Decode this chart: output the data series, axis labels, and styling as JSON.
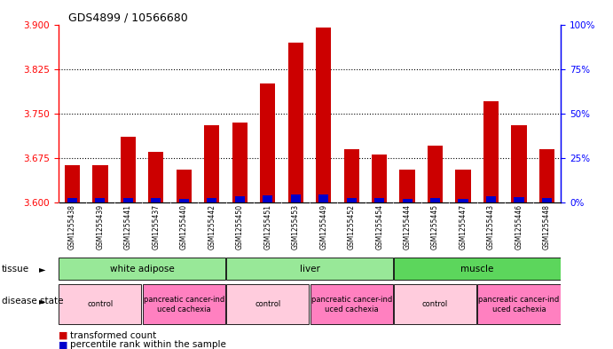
{
  "title": "GDS4899 / 10566680",
  "samples": [
    "GSM1255438",
    "GSM1255439",
    "GSM1255441",
    "GSM1255437",
    "GSM1255440",
    "GSM1255442",
    "GSM1255450",
    "GSM1255451",
    "GSM1255453",
    "GSM1255449",
    "GSM1255452",
    "GSM1255454",
    "GSM1255444",
    "GSM1255445",
    "GSM1255447",
    "GSM1255443",
    "GSM1255446",
    "GSM1255448"
  ],
  "red_values": [
    3.663,
    3.663,
    3.71,
    3.685,
    3.655,
    3.73,
    3.735,
    3.8,
    3.87,
    3.895,
    3.69,
    3.68,
    3.655,
    3.695,
    3.655,
    3.77,
    3.73,
    3.69
  ],
  "blue_values": [
    3.607,
    3.607,
    3.608,
    3.608,
    3.606,
    3.608,
    3.61,
    3.612,
    3.614,
    3.614,
    3.608,
    3.607,
    3.606,
    3.608,
    3.606,
    3.611,
    3.609,
    3.607
  ],
  "ylim_left": [
    3.6,
    3.9
  ],
  "ylim_right": [
    0,
    100
  ],
  "yticks_left": [
    3.6,
    3.675,
    3.75,
    3.825,
    3.9
  ],
  "yticks_right": [
    0,
    25,
    50,
    75,
    100
  ],
  "grid_values": [
    3.675,
    3.75,
    3.825
  ],
  "tissue_groups": [
    {
      "label": "white adipose",
      "start": 0,
      "end": 6,
      "color": "#98E898"
    },
    {
      "label": "liver",
      "start": 6,
      "end": 12,
      "color": "#98E898"
    },
    {
      "label": "muscle",
      "start": 12,
      "end": 18,
      "color": "#5CD65C"
    }
  ],
  "disease_groups": [
    {
      "label": "control",
      "start": 0,
      "end": 3,
      "color": "#FFCCDD"
    },
    {
      "label": "pancreatic cancer-ind\nuced cachexia",
      "start": 3,
      "end": 6,
      "color": "#FF80C0"
    },
    {
      "label": "control",
      "start": 6,
      "end": 9,
      "color": "#FFCCDD"
    },
    {
      "label": "pancreatic cancer-ind\nuced cachexia",
      "start": 9,
      "end": 12,
      "color": "#FF80C0"
    },
    {
      "label": "control",
      "start": 12,
      "end": 15,
      "color": "#FFCCDD"
    },
    {
      "label": "pancreatic cancer-ind\nuced cachexia",
      "start": 15,
      "end": 18,
      "color": "#FF80C0"
    }
  ],
  "bar_width": 0.55,
  "red_color": "#CC0000",
  "blue_color": "#0000CC",
  "base": 3.6,
  "bg_gray": "#C8C8C8",
  "legend_red_label": "transformed count",
  "legend_blue_label": "percentile rank within the sample"
}
